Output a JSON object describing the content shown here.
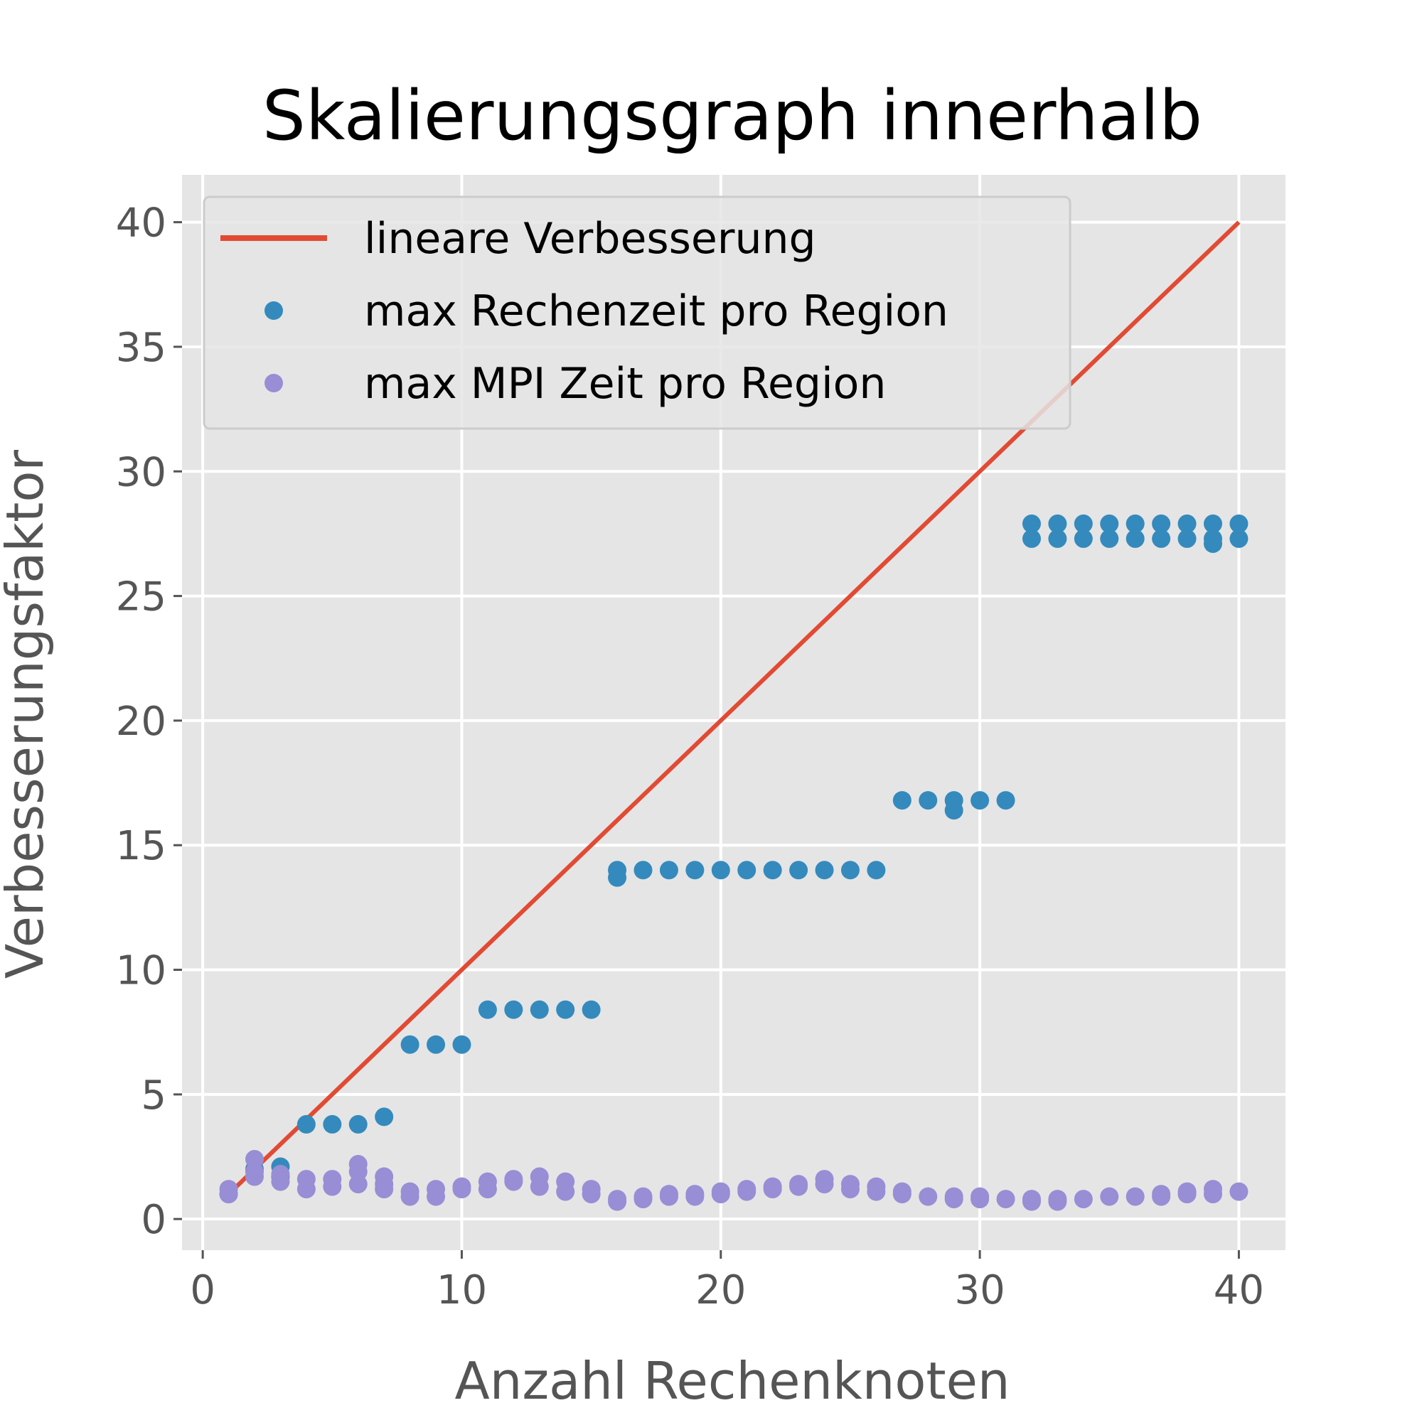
{
  "chart_data": {
    "type": "scatter",
    "title": "Skalierungsgraph innerhalb",
    "xlabel": "Anzahl Rechenknoten",
    "ylabel": "Verbesserungsfaktor",
    "xlim": [
      -0.8,
      41.8
    ],
    "ylim": [
      -1.25,
      41.9
    ],
    "x_ticks": [
      "0",
      "10",
      "20",
      "30",
      "40"
    ],
    "y_ticks": [
      "0",
      "5",
      "10",
      "15",
      "20",
      "25",
      "30",
      "35",
      "40"
    ],
    "grid": true,
    "legend_position": "upper-left",
    "style": {
      "plot_bg": "#e5e5e5",
      "grid_color": "#ffffff",
      "line_color": "#e24a33",
      "series1_color": "#348abd",
      "series2_color": "#988ed5"
    },
    "series": [
      {
        "name": "lineare Verbesserung",
        "kind": "line",
        "points": [
          [
            1,
            1
          ],
          [
            40,
            40
          ]
        ]
      },
      {
        "name": "max Rechenzeit pro Region",
        "kind": "scatter",
        "points": [
          [
            1,
            1.0
          ],
          [
            2,
            2.0
          ],
          [
            3,
            2.1
          ],
          [
            3,
            1.7
          ],
          [
            4,
            3.8
          ],
          [
            5,
            3.8
          ],
          [
            6,
            3.8
          ],
          [
            7,
            4.1
          ],
          [
            8,
            7.0
          ],
          [
            9,
            7.0
          ],
          [
            10,
            7.0
          ],
          [
            11,
            8.4
          ],
          [
            12,
            8.4
          ],
          [
            13,
            8.4
          ],
          [
            14,
            8.4
          ],
          [
            15,
            8.4
          ],
          [
            16,
            14.0
          ],
          [
            16,
            13.7
          ],
          [
            17,
            14.0
          ],
          [
            18,
            14.0
          ],
          [
            19,
            14.0
          ],
          [
            20,
            14.0
          ],
          [
            21,
            14.0
          ],
          [
            22,
            14.0
          ],
          [
            23,
            14.0
          ],
          [
            24,
            14.0
          ],
          [
            25,
            14.0
          ],
          [
            26,
            14.0
          ],
          [
            27,
            16.8
          ],
          [
            28,
            16.8
          ],
          [
            29,
            16.8
          ],
          [
            29,
            16.4
          ],
          [
            30,
            16.8
          ],
          [
            31,
            16.8
          ],
          [
            32,
            27.9
          ],
          [
            32,
            27.3
          ],
          [
            33,
            27.9
          ],
          [
            33,
            27.3
          ],
          [
            34,
            27.9
          ],
          [
            34,
            27.3
          ],
          [
            35,
            27.9
          ],
          [
            35,
            27.3
          ],
          [
            36,
            27.9
          ],
          [
            36,
            27.3
          ],
          [
            37,
            27.9
          ],
          [
            37,
            27.3
          ],
          [
            38,
            27.9
          ],
          [
            38,
            27.3
          ],
          [
            39,
            27.9
          ],
          [
            39,
            27.3
          ],
          [
            39,
            27.1
          ],
          [
            40,
            27.9
          ],
          [
            40,
            27.3
          ]
        ]
      },
      {
        "name": "max MPI Zeit pro Region",
        "kind": "scatter",
        "points": [
          [
            1,
            1.2
          ],
          [
            1,
            1.0
          ],
          [
            2,
            2.4
          ],
          [
            2,
            1.9
          ],
          [
            2,
            1.7
          ],
          [
            3,
            1.8
          ],
          [
            3,
            1.5
          ],
          [
            4,
            1.6
          ],
          [
            4,
            1.2
          ],
          [
            5,
            1.6
          ],
          [
            5,
            1.3
          ],
          [
            6,
            2.2
          ],
          [
            6,
            1.9
          ],
          [
            6,
            1.4
          ],
          [
            7,
            1.7
          ],
          [
            7,
            1.4
          ],
          [
            7,
            1.2
          ],
          [
            8,
            1.1
          ],
          [
            8,
            0.9
          ],
          [
            9,
            1.2
          ],
          [
            9,
            0.9
          ],
          [
            10,
            1.3
          ],
          [
            10,
            1.2
          ],
          [
            11,
            1.5
          ],
          [
            11,
            1.2
          ],
          [
            12,
            1.6
          ],
          [
            12,
            1.5
          ],
          [
            13,
            1.7
          ],
          [
            13,
            1.3
          ],
          [
            14,
            1.5
          ],
          [
            14,
            1.1
          ],
          [
            15,
            1.2
          ],
          [
            15,
            1.0
          ],
          [
            16,
            0.8
          ],
          [
            16,
            0.7
          ],
          [
            17,
            0.9
          ],
          [
            17,
            0.8
          ],
          [
            18,
            1.0
          ],
          [
            18,
            0.9
          ],
          [
            19,
            1.0
          ],
          [
            19,
            0.9
          ],
          [
            20,
            1.1
          ],
          [
            20,
            1.0
          ],
          [
            21,
            1.2
          ],
          [
            21,
            1.1
          ],
          [
            22,
            1.3
          ],
          [
            22,
            1.2
          ],
          [
            23,
            1.4
          ],
          [
            23,
            1.3
          ],
          [
            24,
            1.6
          ],
          [
            24,
            1.4
          ],
          [
            25,
            1.4
          ],
          [
            25,
            1.2
          ],
          [
            26,
            1.3
          ],
          [
            26,
            1.1
          ],
          [
            27,
            1.1
          ],
          [
            27,
            1.0
          ],
          [
            28,
            0.9
          ],
          [
            29,
            0.9
          ],
          [
            29,
            0.8
          ],
          [
            30,
            0.9
          ],
          [
            30,
            0.8
          ],
          [
            31,
            0.8
          ],
          [
            32,
            0.8
          ],
          [
            32,
            0.7
          ],
          [
            33,
            0.8
          ],
          [
            33,
            0.7
          ],
          [
            34,
            0.8
          ],
          [
            35,
            0.9
          ],
          [
            36,
            0.9
          ],
          [
            37,
            1.0
          ],
          [
            37,
            0.9
          ],
          [
            38,
            1.1
          ],
          [
            38,
            1.0
          ],
          [
            39,
            1.2
          ],
          [
            39,
            1.0
          ],
          [
            40,
            1.1
          ]
        ]
      }
    ]
  }
}
